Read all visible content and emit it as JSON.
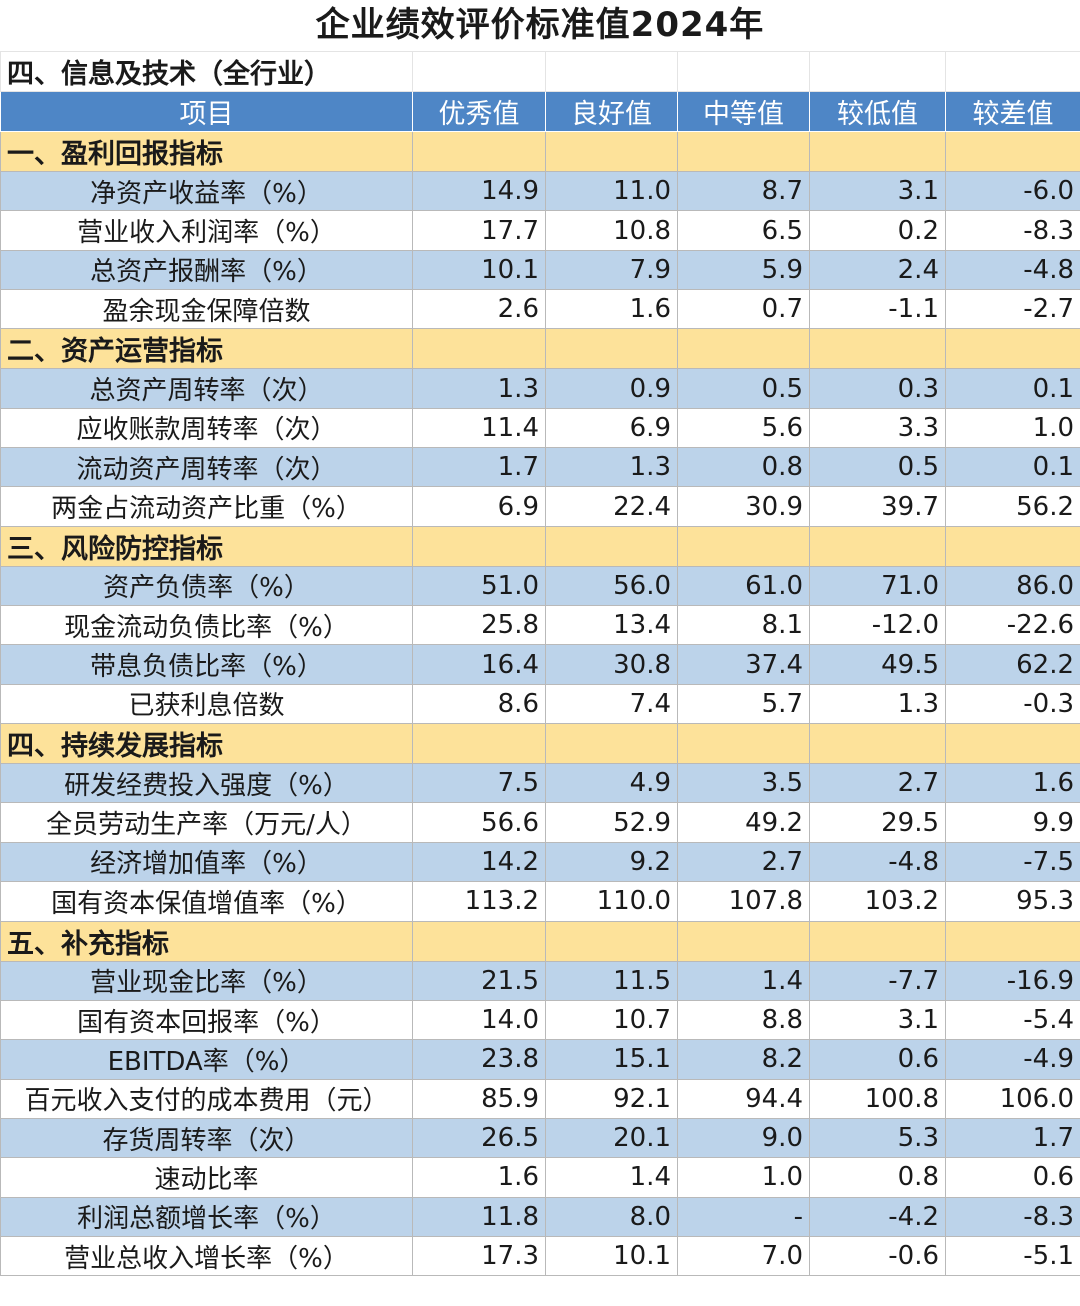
{
  "title": "企业绩效评价标准值2024年",
  "subtitle": "四、信息及技术（全行业）",
  "columns": [
    "项目",
    "优秀值",
    "良好值",
    "中等值",
    "较低值",
    "较差值"
  ],
  "sections": [
    {
      "name": "一、盈利回报指标",
      "rows": [
        {
          "label": "净资产收益率（%）",
          "values": [
            "14.9",
            "11.0",
            "8.7",
            "3.1",
            "-6.0"
          ]
        },
        {
          "label": "营业收入利润率（%）",
          "values": [
            "17.7",
            "10.8",
            "6.5",
            "0.2",
            "-8.3"
          ]
        },
        {
          "label": "总资产报酬率（%）",
          "values": [
            "10.1",
            "7.9",
            "5.9",
            "2.4",
            "-4.8"
          ]
        },
        {
          "label": "盈余现金保障倍数",
          "values": [
            "2.6",
            "1.6",
            "0.7",
            "-1.1",
            "-2.7"
          ]
        }
      ]
    },
    {
      "name": "二、资产运营指标",
      "rows": [
        {
          "label": "总资产周转率（次）",
          "values": [
            "1.3",
            "0.9",
            "0.5",
            "0.3",
            "0.1"
          ]
        },
        {
          "label": "应收账款周转率（次）",
          "values": [
            "11.4",
            "6.9",
            "5.6",
            "3.3",
            "1.0"
          ]
        },
        {
          "label": "流动资产周转率（次）",
          "values": [
            "1.7",
            "1.3",
            "0.8",
            "0.5",
            "0.1"
          ]
        },
        {
          "label": "两金占流动资产比重（%）",
          "values": [
            "6.9",
            "22.4",
            "30.9",
            "39.7",
            "56.2"
          ]
        }
      ]
    },
    {
      "name": "三、风险防控指标",
      "rows": [
        {
          "label": "资产负债率（%）",
          "values": [
            "51.0",
            "56.0",
            "61.0",
            "71.0",
            "86.0"
          ]
        },
        {
          "label": "现金流动负债比率（%）",
          "values": [
            "25.8",
            "13.4",
            "8.1",
            "-12.0",
            "-22.6"
          ]
        },
        {
          "label": "带息负债比率（%）",
          "values": [
            "16.4",
            "30.8",
            "37.4",
            "49.5",
            "62.2"
          ]
        },
        {
          "label": "已获利息倍数",
          "values": [
            "8.6",
            "7.4",
            "5.7",
            "1.3",
            "-0.3"
          ]
        }
      ]
    },
    {
      "name": "四、持续发展指标",
      "rows": [
        {
          "label": "研发经费投入强度（%）",
          "values": [
            "7.5",
            "4.9",
            "3.5",
            "2.7",
            "1.6"
          ]
        },
        {
          "label": "全员劳动生产率（万元/人）",
          "values": [
            "56.6",
            "52.9",
            "49.2",
            "29.5",
            "9.9"
          ]
        },
        {
          "label": "经济增加值率（%）",
          "values": [
            "14.2",
            "9.2",
            "2.7",
            "-4.8",
            "-7.5"
          ]
        },
        {
          "label": "国有资本保值增值率（%）",
          "values": [
            "113.2",
            "110.0",
            "107.8",
            "103.2",
            "95.3"
          ]
        }
      ]
    },
    {
      "name": "五、补充指标",
      "rows": [
        {
          "label": "营业现金比率（%）",
          "values": [
            "21.5",
            "11.5",
            "1.4",
            "-7.7",
            "-16.9"
          ]
        },
        {
          "label": "国有资本回报率（%）",
          "values": [
            "14.0",
            "10.7",
            "8.8",
            "3.1",
            "-5.4"
          ]
        },
        {
          "label": "EBITDA率（%）",
          "values": [
            "23.8",
            "15.1",
            "8.2",
            "0.6",
            "-4.9"
          ]
        },
        {
          "label": "百元收入支付的成本费用（元）",
          "values": [
            "85.9",
            "92.1",
            "94.4",
            "100.8",
            "106.0"
          ]
        },
        {
          "label": "存货周转率（次）",
          "values": [
            "26.5",
            "20.1",
            "9.0",
            "5.3",
            "1.7"
          ]
        },
        {
          "label": "速动比率",
          "values": [
            "1.6",
            "1.4",
            "1.0",
            "0.8",
            "0.6"
          ]
        },
        {
          "label": "利润总额增长率（%）",
          "values": [
            "11.8",
            "8.0",
            "-",
            "-4.2",
            "-8.3"
          ]
        },
        {
          "label": "营业总收入增长率（%）",
          "values": [
            "17.3",
            "10.1",
            "7.0",
            "-0.6",
            "-5.1"
          ]
        }
      ]
    }
  ],
  "colors": {
    "header_bg": "#4e86c6",
    "section_bg": "#fde29a",
    "alt_row_bg": "#bcd3ea",
    "plain_row_bg": "#ffffff"
  }
}
